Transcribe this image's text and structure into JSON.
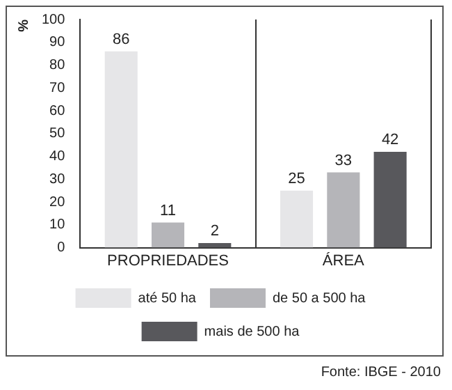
{
  "chart_data": {
    "type": "bar",
    "ylabel": "%",
    "categories": [
      "PROPRIEDADES",
      "ÁREA"
    ],
    "series": [
      {
        "name": "até 50 ha",
        "color": "#e6e6e8",
        "values": [
          86,
          25
        ]
      },
      {
        "name": "de 50 a 500 ha",
        "color": "#b5b5b9",
        "values": [
          11,
          33
        ]
      },
      {
        "name": "mais de 500 ha",
        "color": "#58585c",
        "values": [
          2,
          42
        ]
      }
    ],
    "ylim": [
      0,
      100
    ],
    "yticks": [
      0,
      10,
      20,
      30,
      40,
      50,
      60,
      70,
      80,
      90,
      100
    ],
    "grid": "x",
    "legend": "bottom",
    "data_labels": true,
    "annotations": [
      "Fonte: IBGE - 2010"
    ]
  }
}
